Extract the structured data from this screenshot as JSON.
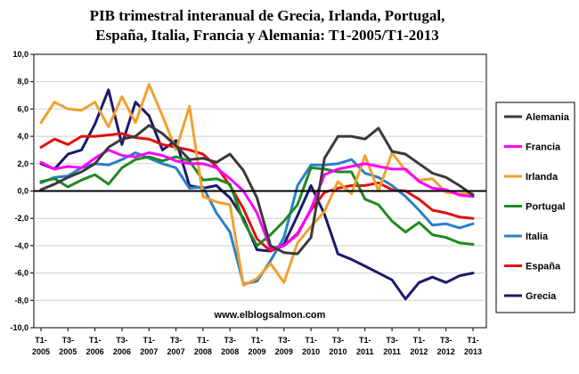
{
  "chart_data": {
    "type": "line",
    "title_lines": [
      "PIB trimestral interanual de Grecia, Irlanda, Portugal,",
      "España, Italia, Francia y Alemania: T1-2005/T1-2013"
    ],
    "watermark": "www.elblogsalmon.com",
    "ylim": [
      -10,
      10
    ],
    "y_ticks": [
      "10,0",
      "8,0",
      "6,0",
      "4,0",
      "2,0",
      "0,0",
      "-2,0",
      "-4,0",
      "-6,0",
      "-8,0",
      "-10,0"
    ],
    "y_tick_values": [
      10,
      8,
      6,
      4,
      2,
      0,
      -2,
      -4,
      -6,
      -8,
      -10
    ],
    "x_ticks": [
      [
        "T1-",
        "2005"
      ],
      [
        "T3-",
        "2005"
      ],
      [
        "T1-",
        "2006"
      ],
      [
        "T3-",
        "2006"
      ],
      [
        "T1-",
        "2007"
      ],
      [
        "T3-",
        "2007"
      ],
      [
        "T1-",
        "2008"
      ],
      [
        "T3-",
        "2008"
      ],
      [
        "T1-",
        "2009"
      ],
      [
        "T3-",
        "2009"
      ],
      [
        "T1-",
        "2010"
      ],
      [
        "T3-",
        "2010"
      ],
      [
        "T1-",
        "2011"
      ],
      [
        "T3-",
        "2011"
      ],
      [
        "T1-",
        "2012"
      ],
      [
        "T3-",
        "2012"
      ],
      [
        "T1-",
        "2013"
      ]
    ],
    "grid": "horizontal",
    "legend_position": "right",
    "series": [
      {
        "name": "Alemania",
        "color": "#3a3a3a",
        "values": [
          0.1,
          0.5,
          1.0,
          1.4,
          2.0,
          3.2,
          3.8,
          4.0,
          4.8,
          4.2,
          3.3,
          2.3,
          2.4,
          2.1,
          2.7,
          1.5,
          -0.5,
          -4.0,
          -4.5,
          -4.6,
          -3.4,
          2.4,
          4.0,
          4.0,
          3.8,
          4.6,
          2.9,
          2.7,
          2.0,
          1.3,
          1.0,
          0.4,
          -0.3
        ]
      },
      {
        "name": "Francia",
        "color": "#ff00ff",
        "values": [
          2.1,
          1.6,
          1.8,
          1.7,
          2.4,
          3.0,
          2.6,
          2.5,
          2.8,
          2.6,
          2.2,
          2.0,
          2.0,
          1.7,
          0.9,
          0.0,
          -1.6,
          -4.2,
          -4.0,
          -3.2,
          -1.3,
          1.2,
          1.6,
          1.8,
          2.0,
          1.8,
          1.6,
          1.6,
          0.7,
          0.2,
          0.1,
          -0.3,
          -0.4
        ]
      },
      {
        "name": "Irlanda",
        "color": "#f0a030",
        "values": [
          5.0,
          6.5,
          6.0,
          5.9,
          6.5,
          4.7,
          6.9,
          5.0,
          7.8,
          5.5,
          3.0,
          6.2,
          -0.4,
          -0.8,
          -1.0,
          -6.9,
          -6.4,
          -5.3,
          -6.7,
          -3.8,
          -2.6,
          -1.5,
          0.7,
          -0.2,
          2.6,
          0.0,
          2.8,
          1.5,
          0.8,
          0.9,
          -0.1,
          -0.2,
          -0.2
        ]
      },
      {
        "name": "Portugal",
        "color": "#1f8a1f",
        "values": [
          0.7,
          0.9,
          0.3,
          0.8,
          1.2,
          0.5,
          1.7,
          2.3,
          2.5,
          2.2,
          2.5,
          2.2,
          0.8,
          0.9,
          0.5,
          -2.2,
          -4.0,
          -3.2,
          -2.2,
          -1.0,
          1.7,
          1.6,
          1.4,
          1.4,
          -0.6,
          -1.0,
          -2.2,
          -3.0,
          -2.3,
          -3.2,
          -3.4,
          -3.8,
          -3.9
        ]
      },
      {
        "name": "Italia",
        "color": "#2a7fc8",
        "values": [
          0.6,
          1.0,
          1.1,
          1.7,
          2.0,
          1.9,
          2.3,
          2.8,
          2.4,
          2.0,
          1.7,
          0.2,
          0.3,
          -1.6,
          -3.0,
          -6.8,
          -6.6,
          -5.1,
          -3.4,
          0.4,
          1.9,
          1.9,
          2.0,
          2.3,
          1.3,
          1.0,
          0.4,
          -0.4,
          -1.4,
          -2.5,
          -2.4,
          -2.7,
          -2.4
        ]
      },
      {
        "name": "España",
        "color": "#e01010",
        "values": [
          3.2,
          3.8,
          3.4,
          4.0,
          4.0,
          4.1,
          4.2,
          3.9,
          3.8,
          3.4,
          3.2,
          3.0,
          2.7,
          1.8,
          0.4,
          -1.3,
          -3.5,
          -4.4,
          -4.0,
          -3.1,
          -1.4,
          -0.1,
          0.2,
          0.4,
          0.4,
          0.6,
          0.1,
          0.0,
          -0.6,
          -1.4,
          -1.6,
          -1.9,
          -2.0
        ]
      },
      {
        "name": "Grecia",
        "color": "#1a1a6e",
        "values": [
          2.0,
          1.6,
          2.7,
          3.0,
          4.9,
          7.4,
          3.4,
          6.5,
          5.5,
          3.0,
          3.7,
          0.4,
          0.2,
          0.4,
          -0.5,
          -2.0,
          -4.3,
          -4.4,
          -3.9,
          -1.8,
          0.4,
          -1.7,
          -4.6,
          -5.0,
          -5.5,
          -6.0,
          -6.5,
          -7.9,
          -6.7,
          -6.3,
          -6.7,
          -6.2,
          -6.0
        ]
      }
    ]
  }
}
